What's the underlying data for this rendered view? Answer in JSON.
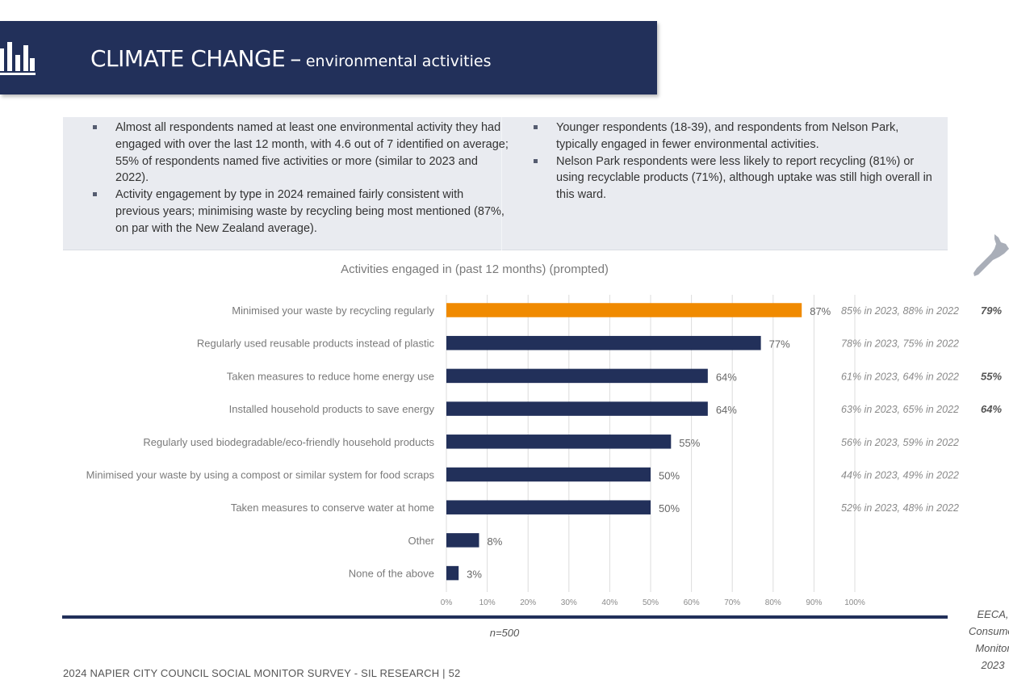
{
  "header": {
    "title": "CLIMATE CHANGE",
    "dash": "–",
    "subtitle": "environmental activities"
  },
  "summary": {
    "left_bullets": [
      "Almost all respondents named at least one environmental activity they had engaged with over the last 12 month, with 4.6 out of 7 identified on average; 55% of respondents named five activities or more (similar to 2023 and 2022).",
      "Activity engagement by type in 2024 remained fairly consistent with previous years; minimising waste by recycling being most mentioned (87%, on par with the New Zealand average)."
    ],
    "right_bullets": [
      "Younger respondents (18-39), and respondents from Nelson Park, typically engaged in fewer environmental activities.",
      "Nelson Park respondents were less likely to report recycling (81%) or using recyclable products (71%), although uptake was still high overall in this ward."
    ]
  },
  "chart_data": {
    "type": "bar",
    "orientation": "horizontal",
    "title": "Activities engaged in (past 12 months) (prompted)",
    "categories": [
      "Minimised your waste by recycling regularly",
      "Regularly used reusable products instead of plastic",
      "Taken measures to reduce home energy use",
      "Installed household products to save energy",
      "Regularly used biodegradable/eco-friendly household products",
      "Minimised your waste by using a compost or similar system for food scraps",
      "Taken measures to conserve water at home",
      "Other",
      "None of the above"
    ],
    "values": [
      87,
      77,
      64,
      64,
      55,
      50,
      50,
      8,
      3
    ],
    "value_labels": [
      "87%",
      "77%",
      "64%",
      "64%",
      "55%",
      "50%",
      "50%",
      "8%",
      "3%"
    ],
    "highlight_index": 0,
    "colors": {
      "highlight": "#f08a00",
      "bar": "#22305a",
      "grid": "#dcdcdc"
    },
    "xlim": [
      0,
      100
    ],
    "x_ticks": [
      "0%",
      "10%",
      "20%",
      "30%",
      "40%",
      "50%",
      "60%",
      "70%",
      "80%",
      "90%",
      "100%"
    ],
    "grid": true,
    "previous_years": [
      "85% in 2023, 88% in 2022",
      "78% in 2023, 75% in 2022",
      "61% in 2023, 64% in 2022",
      "63% in 2023, 65% in 2022",
      "56% in 2023, 59% in 2022",
      "44% in 2023, 49% in 2022",
      "52% in 2023, 48% in 2022",
      "",
      ""
    ],
    "benchmarks": [
      "79%",
      "",
      "55%",
      "64%",
      "",
      "",
      "",
      "",
      ""
    ],
    "n_label": "n=500"
  },
  "benchmark_source": [
    "EECA,",
    "Consumer",
    "Monitor",
    "2023"
  ],
  "footer": "2024 NAPIER CITY COUNCIL SOCIAL MONITOR SURVEY - SIL RESEARCH | 52"
}
